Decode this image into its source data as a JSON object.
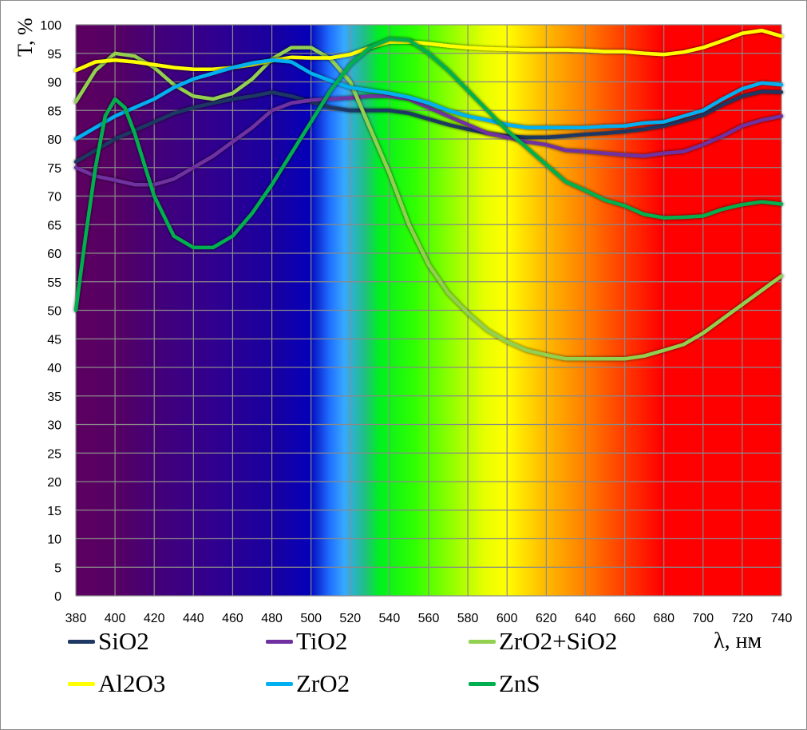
{
  "chart_data": {
    "type": "line",
    "title": "",
    "xlabel": "λ, нм",
    "ylabel": "T, %",
    "xlim": [
      380,
      740
    ],
    "ylim": [
      0,
      100
    ],
    "xticks": [
      380,
      400,
      420,
      440,
      460,
      480,
      500,
      520,
      540,
      560,
      580,
      600,
      620,
      640,
      660,
      680,
      700,
      720,
      740
    ],
    "yticks": [
      0,
      5,
      10,
      15,
      20,
      25,
      30,
      35,
      40,
      45,
      50,
      55,
      60,
      65,
      70,
      75,
      80,
      85,
      90,
      95,
      100
    ],
    "grid": true,
    "legend_position": "bottom",
    "background": "visible spectrum gradient",
    "x": [
      380,
      390,
      400,
      410,
      420,
      430,
      440,
      450,
      460,
      470,
      480,
      490,
      500,
      510,
      520,
      530,
      540,
      550,
      560,
      570,
      580,
      590,
      600,
      610,
      620,
      630,
      640,
      650,
      660,
      670,
      680,
      690,
      700,
      710,
      720,
      730,
      740
    ],
    "series": [
      {
        "name": "SiO2",
        "color": "#1f3864",
        "values": [
          76,
          78,
          80,
          81.5,
          83,
          84.5,
          85.5,
          86.3,
          87,
          87.5,
          88.2,
          87.5,
          86.5,
          85.5,
          85,
          85,
          85,
          84.5,
          83.5,
          82.5,
          81.7,
          81,
          80.5,
          80.3,
          80.3,
          80.5,
          80.8,
          81,
          81.3,
          81.7,
          82.3,
          83.2,
          84.2,
          86,
          87.5,
          88.3,
          88.2
        ]
      },
      {
        "name": "TiO2",
        "color": "#7030a0",
        "values": [
          75,
          73.5,
          72.8,
          72,
          72,
          73,
          75,
          77,
          79.5,
          82,
          85,
          86.3,
          86.8,
          87,
          87.2,
          87.5,
          87.5,
          87,
          85.5,
          84,
          82.5,
          81,
          80.3,
          79.5,
          79,
          78,
          77.8,
          77.5,
          77.2,
          77,
          77.5,
          77.8,
          79,
          80.5,
          82.3,
          83.3,
          84
        ]
      },
      {
        "name": "ZrO2+SiO2",
        "color": "#92d050",
        "values": [
          86.5,
          92,
          95,
          94.5,
          92.5,
          89.5,
          87.5,
          87,
          88,
          90.5,
          94,
          96,
          96,
          94,
          90,
          82,
          74,
          65,
          58,
          53,
          49.5,
          46.5,
          44.5,
          43,
          42.2,
          41.5,
          41.5,
          41.5,
          41.5,
          42,
          43,
          44,
          46,
          48.5,
          51,
          53.5,
          56
        ]
      },
      {
        "name": "Al2O3",
        "color": "#ffff00",
        "values": [
          92,
          93.5,
          93.8,
          93.5,
          93,
          92.5,
          92.2,
          92.2,
          92.5,
          93,
          93.7,
          94.3,
          94.2,
          94.2,
          94.8,
          96,
          97,
          97,
          96.7,
          96.3,
          96,
          95.8,
          95.7,
          95.6,
          95.6,
          95.6,
          95.5,
          95.3,
          95.3,
          95,
          94.8,
          95.2,
          96,
          97.2,
          98.5,
          99,
          98
        ]
      },
      {
        "name": "ZrO2",
        "color": "#00b0f0",
        "values": [
          80,
          82,
          84,
          85.5,
          87,
          89,
          90.5,
          91.5,
          92.5,
          93.3,
          93.8,
          93.5,
          91.5,
          90.2,
          89,
          88.5,
          88,
          87.3,
          86.3,
          85,
          84,
          83.3,
          82.5,
          82,
          82,
          82,
          82,
          82.2,
          82.3,
          82.8,
          83,
          84,
          85,
          87,
          88.8,
          89.8,
          89.5
        ]
      },
      {
        "name": "ZnS",
        "color": "#00b050",
        "x": [
          380,
          385,
          390,
          395,
          400,
          405,
          410,
          420,
          430,
          440,
          450,
          460,
          470,
          480,
          490,
          500,
          510,
          520,
          530,
          540,
          550,
          560,
          570,
          580,
          590,
          600,
          610,
          620,
          630,
          640,
          650,
          660,
          670,
          680,
          690,
          700,
          710,
          720,
          730,
          740
        ],
        "values": [
          50,
          63,
          75,
          84,
          87,
          85.5,
          81,
          70,
          63,
          61,
          61,
          63,
          67,
          72,
          77.5,
          83,
          88.5,
          93,
          96,
          97.5,
          97.3,
          95,
          92,
          88.5,
          85,
          81.5,
          78.5,
          75.5,
          72.5,
          71,
          69.3,
          68.3,
          66.8,
          66.2,
          66.3,
          66.5,
          67.7,
          68.5,
          69,
          68.6
        ]
      }
    ]
  }
}
